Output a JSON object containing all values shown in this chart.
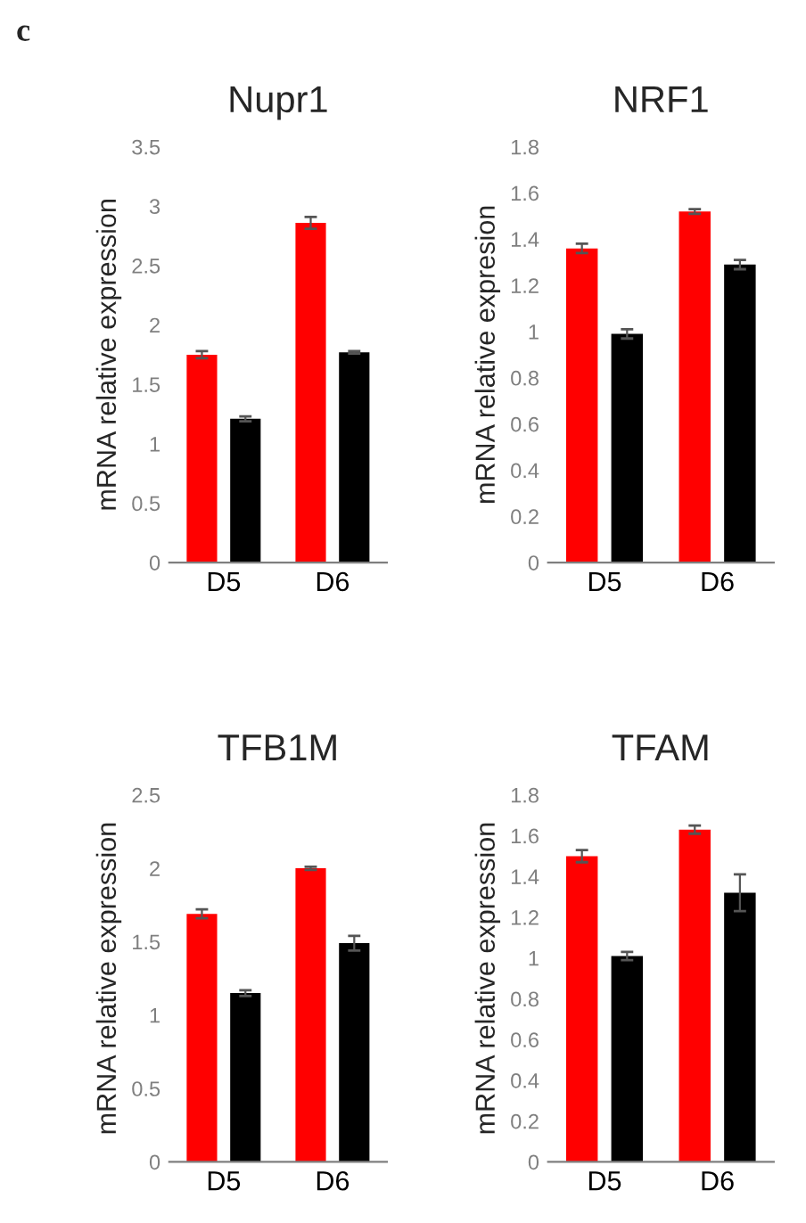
{
  "chart_data": [
    {
      "type": "bar",
      "title": "Nupr1",
      "ylabel": "mRNA relative expression",
      "categories": [
        "D5",
        "D6"
      ],
      "annotations": [
        "c"
      ],
      "ylim": [
        0,
        3.5
      ],
      "yticks": [
        0,
        0.5,
        1,
        1.5,
        2,
        2.5,
        3,
        3.5
      ],
      "series": [
        {
          "color": "#ff0000",
          "values": [
            1.75,
            2.86
          ],
          "errors": [
            0.03,
            0.05
          ]
        },
        {
          "color": "#000000",
          "values": [
            1.21,
            1.77
          ],
          "errors": [
            0.02,
            0.01
          ]
        }
      ]
    },
    {
      "type": "bar",
      "title": "NRF1",
      "ylabel": "mRNA relative expresion",
      "categories": [
        "D5",
        "D6"
      ],
      "ylim": [
        0,
        1.8
      ],
      "yticks": [
        0,
        0.2,
        0.4,
        0.6,
        0.8,
        1,
        1.2,
        1.4,
        1.6,
        1.8
      ],
      "series": [
        {
          "color": "#ff0000",
          "values": [
            1.36,
            1.52
          ],
          "errors": [
            0.02,
            0.01
          ]
        },
        {
          "color": "#000000",
          "values": [
            0.99,
            1.29
          ],
          "errors": [
            0.02,
            0.02
          ]
        }
      ]
    },
    {
      "type": "bar",
      "title": "TFB1M",
      "ylabel": "mRNA relative expression",
      "categories": [
        "D5",
        "D6"
      ],
      "ylim": [
        0,
        2.5
      ],
      "yticks": [
        0,
        0.5,
        1,
        1.5,
        2,
        2.5
      ],
      "series": [
        {
          "color": "#ff0000",
          "values": [
            1.69,
            2.0
          ],
          "errors": [
            0.03,
            0.01
          ]
        },
        {
          "color": "#000000",
          "values": [
            1.15,
            1.49
          ],
          "errors": [
            0.02,
            0.05
          ]
        }
      ]
    },
    {
      "type": "bar",
      "title": "TFAM",
      "ylabel": "mRNA relative expression",
      "categories": [
        "D5",
        "D6"
      ],
      "ylim": [
        0,
        1.8
      ],
      "yticks": [
        0,
        0.2,
        0.4,
        0.6,
        0.8,
        1,
        1.2,
        1.4,
        1.6,
        1.8
      ],
      "series": [
        {
          "color": "#ff0000",
          "values": [
            1.5,
            1.63
          ],
          "errors": [
            0.03,
            0.02
          ]
        },
        {
          "color": "#000000",
          "values": [
            1.01,
            1.32
          ],
          "errors": [
            0.02,
            0.09
          ]
        }
      ]
    }
  ]
}
